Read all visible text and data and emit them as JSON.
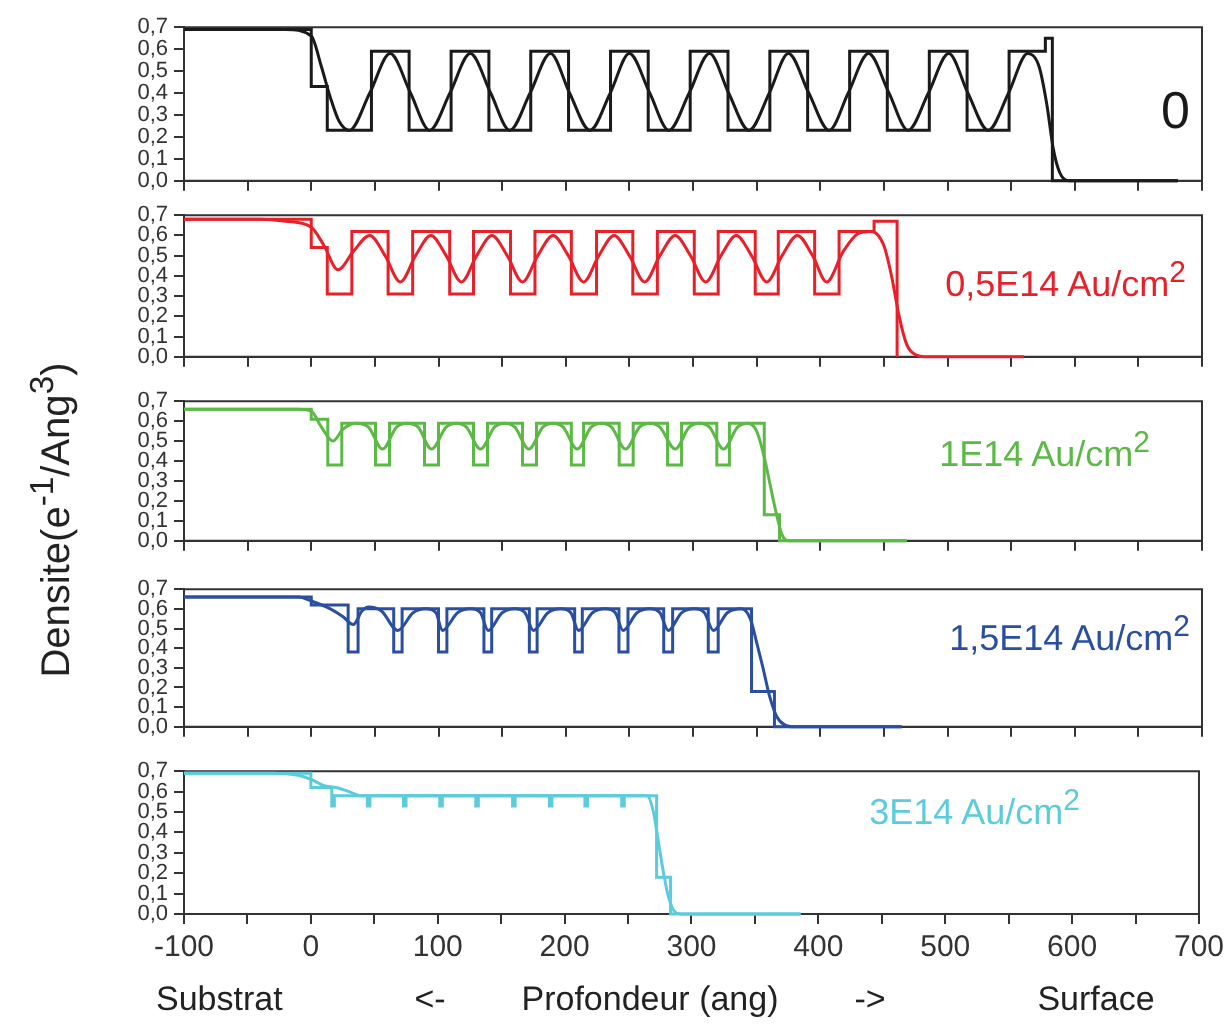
{
  "chart_data": [
    {
      "type": "line",
      "xlim": [
        -100,
        700
      ],
      "ylim": [
        0,
        0.7
      ],
      "tick_labels": "y",
      "marker": "none",
      "xticks": [
        -100,
        {
          "value": -50,
          "label": null
        },
        0,
        {
          "value": 50,
          "label": null
        },
        100,
        {
          "value": 150,
          "label": null
        },
        200,
        {
          "value": 250,
          "label": null
        },
        300,
        {
          "value": 350,
          "label": null
        },
        400,
        {
          "value": 450,
          "label": null
        },
        500,
        {
          "value": 550,
          "label": null
        },
        600,
        {
          "value": 650,
          "label": null
        },
        700
      ],
      "yticks": [
        {
          "value": 0,
          "label": "0,0"
        },
        {
          "value": 0.1,
          "label": "0,1"
        },
        {
          "value": 0.2,
          "label": "0,2"
        },
        {
          "value": 0.3,
          "label": "0,3"
        },
        {
          "value": 0.4,
          "label": "0,4"
        },
        {
          "value": 0.5,
          "label": "0,5"
        },
        {
          "value": 0.6,
          "label": "0,6"
        },
        {
          "value": 0.7,
          "label": "0,7"
        }
      ],
      "annotations": [
        "0"
      ],
      "series": [
        {
          "type": "step",
          "color": "#1a1a1a",
          "x": [
            -100,
            0,
            12.6,
            47.3,
            76.9,
            109.9,
            139.6,
            172.5,
            202.2,
            235.2,
            264.8,
            297.8,
            327.5,
            360.4,
            390.1,
            423.1,
            452.7,
            485.7,
            515.4,
            548.4,
            576.9,
            582.4,
            681
          ],
          "values": [
            0.69,
            0.43,
            0.23,
            0.59,
            0.23,
            0.59,
            0.23,
            0.59,
            0.23,
            0.59,
            0.23,
            0.59,
            0.23,
            0.59,
            0.23,
            0.59,
            0.23,
            0.59,
            0.23,
            0.59,
            0.65,
            0,
            0
          ]
        },
        {
          "type": "line",
          "color": "#1a1a1a",
          "x": [
            -100,
            -20,
            0,
            8,
            15,
            22,
            30,
            46,
            62,
            78,
            93,
            109,
            125,
            141,
            156,
            172,
            188,
            203,
            219,
            235,
            250,
            266,
            281,
            297,
            313,
            328,
            344,
            360,
            375,
            391,
            407,
            422,
            438,
            454,
            469,
            485,
            501,
            516,
            532,
            548,
            563,
            572,
            578,
            583,
            588,
            595,
            681
          ],
          "values": [
            0.69,
            0.69,
            0.66,
            0.52,
            0.38,
            0.27,
            0.23,
            0.4,
            0.58,
            0.4,
            0.23,
            0.4,
            0.58,
            0.4,
            0.23,
            0.4,
            0.58,
            0.4,
            0.23,
            0.4,
            0.58,
            0.4,
            0.23,
            0.4,
            0.58,
            0.4,
            0.23,
            0.4,
            0.58,
            0.4,
            0.23,
            0.4,
            0.58,
            0.4,
            0.23,
            0.4,
            0.58,
            0.4,
            0.23,
            0.4,
            0.58,
            0.52,
            0.35,
            0.15,
            0.04,
            0,
            0
          ]
        }
      ]
    },
    {
      "type": "line",
      "xlim": [
        -100,
        700
      ],
      "ylim": [
        0,
        0.7
      ],
      "tick_labels": "y",
      "marker": "none",
      "xticks": [
        -100,
        {
          "value": -50,
          "label": null
        },
        0,
        {
          "value": 50,
          "label": null
        },
        100,
        {
          "value": 150,
          "label": null
        },
        200,
        {
          "value": 250,
          "label": null
        },
        300,
        {
          "value": 350,
          "label": null
        },
        400,
        {
          "value": 450,
          "label": null
        },
        500,
        {
          "value": 550,
          "label": null
        },
        600,
        {
          "value": 650,
          "label": null
        },
        700
      ],
      "yticks": [
        {
          "value": 0,
          "label": "0,0"
        },
        {
          "value": 0.1,
          "label": "0,1"
        },
        {
          "value": 0.2,
          "label": "0,2"
        },
        {
          "value": 0.3,
          "label": "0,3"
        },
        {
          "value": 0.4,
          "label": "0,4"
        },
        {
          "value": 0.5,
          "label": "0,5"
        },
        {
          "value": 0.6,
          "label": "0,6"
        },
        {
          "value": 0.7,
          "label": "0,7"
        }
      ],
      "annotations": [
        "0,5E14 Au/cm$^{2}$"
      ],
      "series": [
        {
          "type": "step",
          "color": "#e8202a",
          "x": [
            -100,
            0,
            12.6,
            31.9,
            60.4,
            79.7,
            108.8,
            127.5,
            156.6,
            175.8,
            204.4,
            224.2,
            252.7,
            272,
            301,
            319.8,
            348.9,
            367,
            395.6,
            414.8,
            442.3,
            460.4
          ],
          "values": [
            0.68,
            0.54,
            0.31,
            0.62,
            0.31,
            0.62,
            0.31,
            0.62,
            0.31,
            0.62,
            0.31,
            0.62,
            0.31,
            0.62,
            0.31,
            0.62,
            0.31,
            0.62,
            0.31,
            0.62,
            0.67,
            0
          ]
        },
        {
          "type": "line",
          "color": "#e8202a",
          "x": [
            -100,
            -40,
            -20,
            0,
            10,
            21,
            33,
            46,
            58,
            70,
            82,
            94,
            106,
            118,
            130,
            142,
            154,
            166,
            178,
            190,
            202,
            214,
            226,
            238,
            250,
            262,
            274,
            286,
            298,
            310,
            322,
            334,
            346,
            358,
            370,
            382,
            394,
            405,
            418,
            430,
            440,
            450,
            456,
            462,
            468,
            475,
            485,
            560
          ],
          "values": [
            0.68,
            0.68,
            0.67,
            0.64,
            0.55,
            0.43,
            0.52,
            0.6,
            0.5,
            0.37,
            0.5,
            0.6,
            0.5,
            0.37,
            0.5,
            0.6,
            0.5,
            0.37,
            0.5,
            0.6,
            0.5,
            0.37,
            0.5,
            0.6,
            0.5,
            0.37,
            0.5,
            0.6,
            0.5,
            0.37,
            0.5,
            0.6,
            0.5,
            0.37,
            0.5,
            0.6,
            0.5,
            0.37,
            0.52,
            0.61,
            0.62,
            0.55,
            0.4,
            0.2,
            0.06,
            0.01,
            0,
            0
          ]
        }
      ]
    },
    {
      "type": "line",
      "xlim": [
        -100,
        700
      ],
      "ylim": [
        0,
        0.7
      ],
      "tick_labels": "y",
      "marker": "none",
      "ylabel": "Densite(e$^{-1}$/Ang$^{3}$)",
      "xticks": [
        -100,
        {
          "value": -50,
          "label": null
        },
        0,
        {
          "value": 50,
          "label": null
        },
        100,
        {
          "value": 150,
          "label": null
        },
        200,
        {
          "value": 250,
          "label": null
        },
        300,
        {
          "value": 350,
          "label": null
        },
        400,
        {
          "value": 450,
          "label": null
        },
        500,
        {
          "value": 550,
          "label": null
        },
        600,
        {
          "value": 650,
          "label": null
        },
        700
      ],
      "yticks": [
        {
          "value": 0,
          "label": "0,0"
        },
        {
          "value": 0.1,
          "label": "0,1"
        },
        {
          "value": 0.2,
          "label": "0,2"
        },
        {
          "value": 0.3,
          "label": "0,3"
        },
        {
          "value": 0.4,
          "label": "0,4"
        },
        {
          "value": 0.5,
          "label": "0,5"
        },
        {
          "value": 0.6,
          "label": "0,6"
        },
        {
          "value": 0.7,
          "label": "0,7"
        }
      ],
      "annotations": [
        "1E14 Au/cm$^{2}$"
      ],
      "series": [
        {
          "type": "step",
          "color": "#5cb946",
          "x": [
            -100,
            0,
            13,
            24,
            50.5,
            61.5,
            89,
            100,
            127.5,
            138.5,
            166,
            177,
            204.4,
            214,
            242,
            253,
            280,
            291,
            318.7,
            328.6,
            356,
            368,
            468
          ],
          "values": [
            0.66,
            0.61,
            0.38,
            0.59,
            0.38,
            0.59,
            0.38,
            0.59,
            0.38,
            0.59,
            0.38,
            0.59,
            0.38,
            0.59,
            0.38,
            0.59,
            0.38,
            0.59,
            0.38,
            0.59,
            0.13,
            0,
            0
          ]
        },
        {
          "type": "line",
          "color": "#5cb946",
          "x": [
            -100,
            -10,
            0,
            8,
            17,
            25,
            35,
            45,
            56,
            67,
            75,
            84,
            94.5,
            106,
            114,
            122,
            133,
            144,
            152,
            160,
            171,
            182,
            190,
            198,
            209,
            220,
            228,
            236,
            247,
            258,
            266,
            274,
            286,
            297,
            305,
            313,
            324,
            335,
            343,
            350,
            356,
            360,
            365,
            370,
            376,
            468
          ],
          "values": [
            0.66,
            0.66,
            0.65,
            0.57,
            0.5,
            0.56,
            0.59,
            0.57,
            0.46,
            0.57,
            0.59,
            0.57,
            0.46,
            0.57,
            0.59,
            0.57,
            0.46,
            0.57,
            0.59,
            0.57,
            0.46,
            0.57,
            0.59,
            0.57,
            0.46,
            0.57,
            0.59,
            0.57,
            0.46,
            0.57,
            0.59,
            0.57,
            0.46,
            0.57,
            0.59,
            0.57,
            0.46,
            0.57,
            0.59,
            0.55,
            0.42,
            0.3,
            0.15,
            0.03,
            0,
            0
          ]
        }
      ]
    },
    {
      "type": "line",
      "xlim": [
        -100,
        700
      ],
      "ylim": [
        0,
        0.7
      ],
      "tick_labels": "y",
      "marker": "none",
      "xticks": [
        -100,
        {
          "value": -50,
          "label": null
        },
        0,
        {
          "value": 50,
          "label": null
        },
        100,
        {
          "value": 150,
          "label": null
        },
        200,
        {
          "value": 250,
          "label": null
        },
        300,
        {
          "value": 350,
          "label": null
        },
        400,
        {
          "value": 450,
          "label": null
        },
        500,
        {
          "value": 550,
          "label": null
        },
        600,
        {
          "value": 650,
          "label": null
        },
        700
      ],
      "yticks": [
        {
          "value": 0,
          "label": "0,0"
        },
        {
          "value": 0.1,
          "label": "0,1"
        },
        {
          "value": 0.2,
          "label": "0,2"
        },
        {
          "value": 0.3,
          "label": "0,3"
        },
        {
          "value": 0.4,
          "label": "0,4"
        },
        {
          "value": 0.5,
          "label": "0,5"
        },
        {
          "value": 0.6,
          "label": "0,6"
        },
        {
          "value": 0.7,
          "label": "0,7"
        }
      ],
      "annotations": [
        "1,5E14 Au/cm$^{2}$"
      ],
      "series": [
        {
          "type": "step",
          "color": "#2a4ea0",
          "x": [
            -100,
            0,
            29,
            36.8,
            64.8,
            71.4,
            100,
            106.6,
            135.7,
            141.8,
            171.4,
            177.5,
            207,
            213,
            241.8,
            248.9,
            277,
            284,
            312,
            319.8,
            346,
            364,
            464
          ],
          "values": [
            0.66,
            0.62,
            0.38,
            0.6,
            0.38,
            0.6,
            0.38,
            0.6,
            0.38,
            0.6,
            0.38,
            0.6,
            0.38,
            0.6,
            0.38,
            0.6,
            0.38,
            0.6,
            0.38,
            0.6,
            0.18,
            0,
            0
          ]
        },
        {
          "type": "line",
          "color": "#2a4ea0",
          "x": [
            -100,
            -10,
            0,
            15,
            25,
            33,
            40,
            45,
            55,
            68,
            80,
            90,
            98,
            103,
            115,
            125,
            133,
            139,
            150,
            160,
            168,
            174.5,
            186,
            196,
            204,
            210,
            221,
            231,
            239,
            245,
            256,
            266,
            274,
            280.5,
            291,
            301,
            309,
            316,
            327,
            338,
            345,
            350,
            355,
            360,
            366,
            372,
            380,
            464
          ],
          "values": [
            0.66,
            0.66,
            0.64,
            0.6,
            0.56,
            0.52,
            0.59,
            0.61,
            0.59,
            0.49,
            0.58,
            0.6,
            0.58,
            0.49,
            0.58,
            0.6,
            0.58,
            0.49,
            0.58,
            0.6,
            0.58,
            0.49,
            0.58,
            0.6,
            0.58,
            0.49,
            0.58,
            0.6,
            0.58,
            0.49,
            0.58,
            0.6,
            0.58,
            0.49,
            0.58,
            0.6,
            0.58,
            0.49,
            0.58,
            0.6,
            0.55,
            0.43,
            0.3,
            0.16,
            0.05,
            0.01,
            0,
            0
          ]
        }
      ]
    },
    {
      "type": "line",
      "xlim": [
        -100,
        700
      ],
      "ylim": [
        0,
        0.7
      ],
      "marker": "none",
      "xlabel": "Profondeur (ang)",
      "xticks": [
        -100,
        {
          "value": -50,
          "label": null
        },
        0,
        {
          "value": 50,
          "label": null
        },
        100,
        {
          "value": 150,
          "label": null
        },
        200,
        {
          "value": 250,
          "label": null
        },
        300,
        {
          "value": 350,
          "label": null
        },
        400,
        {
          "value": 450,
          "label": null
        },
        500,
        {
          "value": 550,
          "label": null
        },
        600,
        {
          "value": 650,
          "label": null
        },
        700
      ],
      "yticks": [
        {
          "value": 0,
          "label": "0,0"
        },
        {
          "value": 0.1,
          "label": "0,1"
        },
        {
          "value": 0.2,
          "label": "0,2"
        },
        {
          "value": 0.3,
          "label": "0,3"
        },
        {
          "value": 0.4,
          "label": "0,4"
        },
        {
          "value": 0.5,
          "label": "0,5"
        },
        {
          "value": 0.6,
          "label": "0,6"
        },
        {
          "value": 0.7,
          "label": "0,7"
        }
      ],
      "annotations": [
        "3E14 Au/cm$^{2}$",
        "Substrat",
        "<-",
        "->",
        "Surface"
      ],
      "series": [
        {
          "type": "step",
          "color": "#5ccbdc",
          "x": [
            -100,
            0,
            16.5,
            18.5,
            44.5,
            46.5,
            73,
            75,
            101.6,
            103.6,
            130,
            132,
            159,
            161,
            188,
            190,
            216,
            218,
            245,
            247,
            272.5,
            283.5,
            386
          ],
          "values": [
            0.69,
            0.62,
            0.53,
            0.58,
            0.53,
            0.58,
            0.53,
            0.58,
            0.53,
            0.58,
            0.53,
            0.58,
            0.53,
            0.58,
            0.53,
            0.58,
            0.53,
            0.58,
            0.53,
            0.58,
            0.18,
            0,
            0
          ]
        },
        {
          "type": "line",
          "color": "#5ccbdc",
          "x": [
            -100,
            -30,
            -10,
            0,
            10,
            20,
            30,
            40,
            50,
            265,
            270,
            274,
            278,
            282,
            287,
            292,
            386
          ],
          "values": [
            0.69,
            0.69,
            0.68,
            0.66,
            0.63,
            0.62,
            0.6,
            0.58,
            0.58,
            0.58,
            0.5,
            0.35,
            0.2,
            0.08,
            0.01,
            0,
            0
          ]
        }
      ]
    }
  ]
}
